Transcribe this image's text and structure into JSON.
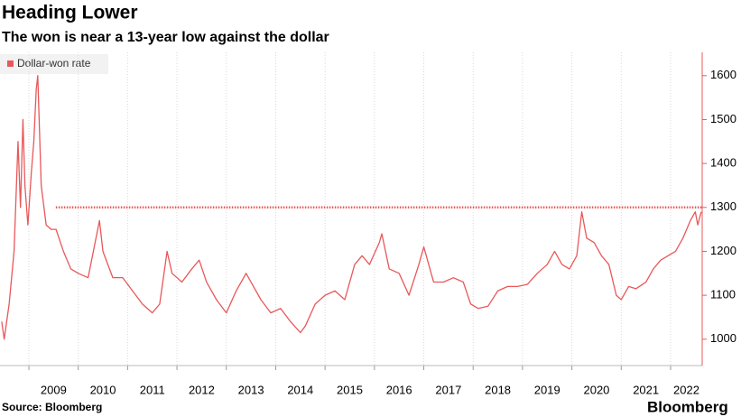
{
  "chart_data": {
    "type": "line",
    "title": "Heading Lower",
    "subtitle": "The won is near a 13-year low against the dollar",
    "source": "Source: Bloomberg",
    "brand": "Bloomberg",
    "x": [
      2008.45,
      2008.5,
      2008.6,
      2008.7,
      2008.78,
      2008.83,
      2008.88,
      2008.92,
      2008.98,
      2009.05,
      2009.1,
      2009.15,
      2009.18,
      2009.25,
      2009.35,
      2009.45,
      2009.55,
      2009.7,
      2009.85,
      2010.0,
      2010.2,
      2010.43,
      2010.5,
      2010.7,
      2010.9,
      2011.1,
      2011.3,
      2011.5,
      2011.65,
      2011.8,
      2011.9,
      2012.1,
      2012.3,
      2012.45,
      2012.6,
      2012.8,
      2013.0,
      2013.2,
      2013.4,
      2013.5,
      2013.7,
      2013.9,
      2014.1,
      2014.3,
      2014.5,
      2014.6,
      2014.8,
      2015.0,
      2015.2,
      2015.4,
      2015.6,
      2015.75,
      2015.9,
      2016.1,
      2016.15,
      2016.3,
      2016.5,
      2016.7,
      2016.9,
      2017.0,
      2017.2,
      2017.4,
      2017.6,
      2017.8,
      2017.95,
      2018.1,
      2018.3,
      2018.5,
      2018.7,
      2018.9,
      2019.1,
      2019.3,
      2019.5,
      2019.65,
      2019.8,
      2019.95,
      2020.1,
      2020.2,
      2020.3,
      2020.45,
      2020.6,
      2020.75,
      2020.9,
      2021.0,
      2021.15,
      2021.3,
      2021.5,
      2021.65,
      2021.8,
      2021.95,
      2022.1,
      2022.25,
      2022.4,
      2022.5,
      2022.55,
      2022.62
    ],
    "series": [
      {
        "name": "Dollar-won rate",
        "color": "#e8585a",
        "values": [
          1040,
          1000,
          1080,
          1200,
          1450,
          1300,
          1500,
          1350,
          1260,
          1380,
          1450,
          1570,
          1600,
          1350,
          1260,
          1250,
          1250,
          1200,
          1160,
          1150,
          1140,
          1270,
          1200,
          1140,
          1140,
          1110,
          1080,
          1060,
          1080,
          1200,
          1150,
          1130,
          1160,
          1180,
          1130,
          1090,
          1060,
          1110,
          1150,
          1130,
          1090,
          1060,
          1070,
          1040,
          1015,
          1030,
          1080,
          1100,
          1110,
          1090,
          1170,
          1190,
          1170,
          1220,
          1240,
          1160,
          1150,
          1100,
          1170,
          1210,
          1130,
          1130,
          1140,
          1130,
          1080,
          1070,
          1075,
          1110,
          1120,
          1120,
          1125,
          1150,
          1170,
          1200,
          1170,
          1160,
          1190,
          1290,
          1230,
          1220,
          1190,
          1170,
          1100,
          1090,
          1120,
          1115,
          1130,
          1160,
          1180,
          1190,
          1200,
          1230,
          1270,
          1290,
          1260,
          1290
        ]
      }
    ],
    "reference_line": 1300,
    "xlim": [
      2008.415,
      2022.64
    ],
    "xticks": [
      2009,
      2010,
      2011,
      2012,
      2013,
      2014,
      2015,
      2016,
      2017,
      2018,
      2019,
      2020,
      2021,
      2022
    ],
    "ylim": [
      940,
      1653
    ],
    "yticks": [
      1000,
      1100,
      1200,
      1300,
      1400,
      1500,
      1600
    ],
    "grid": true,
    "axis_color": "#e8585a"
  }
}
